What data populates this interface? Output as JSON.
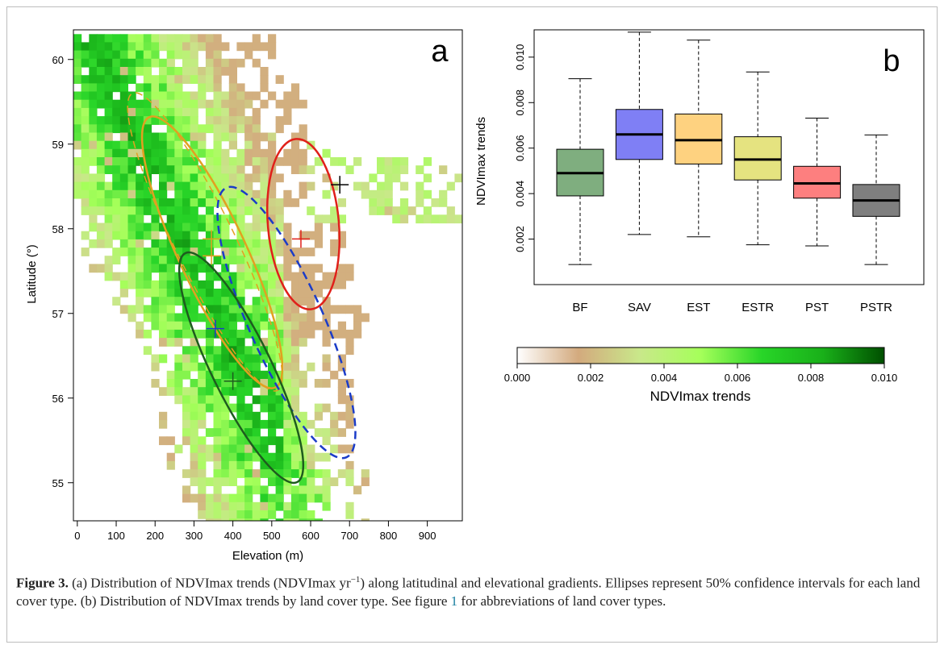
{
  "figure_label": "Figure 3.",
  "caption": {
    "part1": " (a) Distribution of NDVImax trends (NDVImax yr",
    "sup": "−1",
    "part2": ") along latitudinal and elevational gradients. Ellipses represent 50% confidence intervals for each land cover type. (b) Distribution of NDVImax trends by land cover type. See figure ",
    "ref": "1",
    "part3": " for abbreviations of land cover types."
  },
  "chart_data": [
    {
      "panel": "a",
      "type": "heatmap",
      "xlabel": "Elevation (m)",
      "ylabel": "Latitude (°)",
      "xlim": [
        -10,
        990
      ],
      "ylim": [
        54.55,
        60.35
      ],
      "x_ticks": [
        0,
        100,
        200,
        300,
        400,
        500,
        600,
        700,
        800,
        900
      ],
      "y_ticks": [
        55,
        56,
        57,
        58,
        59,
        60
      ],
      "centroids": [
        {
          "x": 675,
          "y": 58.52,
          "color": "#000000"
        },
        {
          "x": 575,
          "y": 57.88,
          "color": "#e0201a"
        },
        {
          "x": 345,
          "y": 57.88,
          "color": "#e2a020"
        },
        {
          "x": 345,
          "y": 57.68,
          "color": "#e2a020"
        },
        {
          "x": 355,
          "y": 56.82,
          "color": "#1b3cc8"
        },
        {
          "x": 400,
          "y": 56.2,
          "color": "#1e5c1e"
        }
      ]
    },
    {
      "panel": "b",
      "type": "box",
      "ylabel": "NDVImax trends",
      "ylim": [
        0.0,
        0.0112
      ],
      "y_ticks": [
        "0.002",
        "0.004",
        "0.006",
        "0.008",
        "0.010"
      ],
      "categories": [
        "BF",
        "SAV",
        "EST",
        "ESTR",
        "PST",
        "PSTR"
      ],
      "colors": [
        "#7fae7f",
        "#7f7ff5",
        "#fed280",
        "#e5e380",
        "#fd7f7f",
        "#7f7f7f"
      ],
      "boxes": [
        {
          "min": 0.00088,
          "q1": 0.0039,
          "median": 0.0049,
          "q3": 0.00595,
          "max": 0.00905
        },
        {
          "min": 0.0022,
          "q1": 0.0055,
          "median": 0.0066,
          "q3": 0.0077,
          "max": 0.0111
        },
        {
          "min": 0.0021,
          "q1": 0.0053,
          "median": 0.00635,
          "q3": 0.0075,
          "max": 0.01075
        },
        {
          "min": 0.00175,
          "q1": 0.0046,
          "median": 0.0055,
          "q3": 0.0065,
          "max": 0.00935
        },
        {
          "min": 0.0017,
          "q1": 0.0038,
          "median": 0.00445,
          "q3": 0.0052,
          "max": 0.00732
        },
        {
          "min": 0.00088,
          "q1": 0.003,
          "median": 0.0037,
          "q3": 0.0044,
          "max": 0.00658
        }
      ]
    },
    {
      "panel": "legend",
      "type": "colorbar",
      "title": "NDVImax trends",
      "range": [
        0.0,
        0.01
      ],
      "tick_labels": [
        "0.000",
        "0.002",
        "0.004",
        "0.006",
        "0.008",
        "0.010"
      ],
      "gradient": [
        "#ffffff",
        "#d3aa7e",
        "#c9e88a",
        "#a5ff5a",
        "#28d528",
        "#19b019",
        "#004f00"
      ]
    }
  ]
}
